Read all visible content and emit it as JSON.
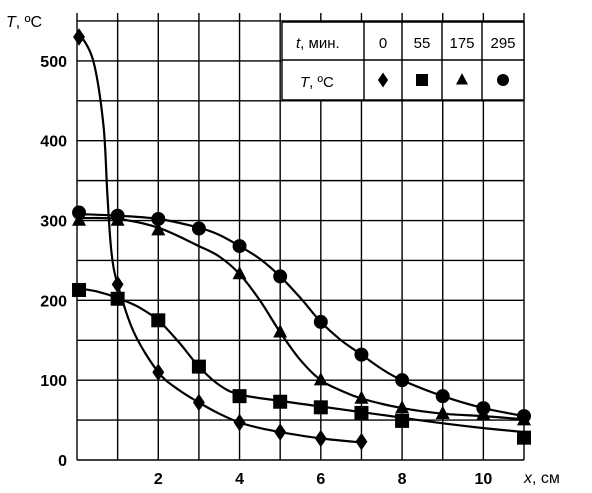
{
  "chart_data": {
    "type": "line",
    "xlabel": {
      "var": "x",
      "unit": ", см"
    },
    "ylabel": {
      "var": "T",
      "unit": ", ºС"
    },
    "xlim": [
      0,
      11
    ],
    "ylim": [
      0,
      560
    ],
    "x_ticks": [
      2,
      4,
      6,
      8,
      10
    ],
    "y_ticks": [
      0,
      100,
      200,
      300,
      400,
      500
    ],
    "grid": true,
    "legend": {
      "placement": "top-right table",
      "header_label": {
        "var": "t",
        "unit": ", мин."
      },
      "marker_row_label": {
        "var": "T",
        "unit": ", ºС"
      },
      "entries": [
        "0",
        "55",
        "175",
        "295"
      ]
    },
    "series": [
      {
        "name": "0",
        "marker": "diamond",
        "points": [
          [
            0.05,
            530
          ],
          [
            1,
            220
          ],
          [
            2,
            110
          ],
          [
            3,
            72
          ],
          [
            4,
            47
          ],
          [
            5,
            35
          ],
          [
            6,
            27
          ],
          [
            7,
            23
          ]
        ],
        "curve": [
          [
            0.05,
            535
          ],
          [
            0.4,
            500
          ],
          [
            0.65,
            420
          ],
          [
            0.75,
            330
          ],
          [
            0.85,
            260
          ],
          [
            1,
            220
          ],
          [
            1.4,
            160
          ],
          [
            2,
            110
          ],
          [
            2.5,
            88
          ],
          [
            3,
            72
          ],
          [
            3.5,
            58
          ],
          [
            4,
            47
          ],
          [
            4.5,
            40
          ],
          [
            5,
            35
          ],
          [
            6,
            27
          ],
          [
            7,
            22
          ]
        ]
      },
      {
        "name": "55",
        "marker": "square",
        "points": [
          [
            0.05,
            213
          ],
          [
            1,
            202
          ],
          [
            2,
            175
          ],
          [
            3,
            117
          ],
          [
            4,
            80
          ],
          [
            5,
            73
          ],
          [
            6,
            66
          ],
          [
            7,
            59
          ],
          [
            8,
            49
          ],
          [
            11,
            28
          ]
        ],
        "curve": [
          [
            0.05,
            215
          ],
          [
            0.5,
            211
          ],
          [
            1,
            203
          ],
          [
            1.5,
            192
          ],
          [
            2,
            175
          ],
          [
            2.5,
            148
          ],
          [
            3,
            117
          ],
          [
            3.5,
            94
          ],
          [
            4,
            82
          ],
          [
            5,
            74
          ],
          [
            6,
            67
          ],
          [
            7,
            60
          ],
          [
            8,
            53
          ],
          [
            9,
            46
          ],
          [
            10,
            40
          ],
          [
            11,
            35
          ]
        ]
      },
      {
        "name": "175",
        "marker": "triangle",
        "points": [
          [
            0.05,
            300
          ],
          [
            1,
            300
          ],
          [
            2,
            288
          ],
          [
            4,
            233
          ],
          [
            5,
            160
          ],
          [
            6,
            100
          ],
          [
            7,
            77
          ],
          [
            8,
            65
          ],
          [
            9,
            58
          ],
          [
            10,
            57
          ],
          [
            11,
            50
          ]
        ],
        "curve": [
          [
            0.05,
            303
          ],
          [
            1,
            302
          ],
          [
            2,
            291
          ],
          [
            3,
            268
          ],
          [
            3.5,
            255
          ],
          [
            4,
            233
          ],
          [
            4.5,
            200
          ],
          [
            5,
            160
          ],
          [
            5.5,
            125
          ],
          [
            6,
            100
          ],
          [
            6.5,
            87
          ],
          [
            7,
            77
          ],
          [
            8,
            65
          ],
          [
            9,
            58
          ],
          [
            10,
            55
          ],
          [
            11,
            51
          ]
        ]
      },
      {
        "name": "295",
        "marker": "circle",
        "points": [
          [
            0.05,
            310
          ],
          [
            1,
            306
          ],
          [
            2,
            302
          ],
          [
            3,
            290
          ],
          [
            4,
            268
          ],
          [
            5,
            230
          ],
          [
            6,
            173
          ],
          [
            7,
            132
          ],
          [
            8,
            100
          ],
          [
            9,
            80
          ],
          [
            10,
            65
          ],
          [
            11,
            55
          ]
        ],
        "curve": [
          [
            0.05,
            308
          ],
          [
            1,
            306
          ],
          [
            2,
            302
          ],
          [
            3,
            291
          ],
          [
            3.5,
            282
          ],
          [
            4,
            268
          ],
          [
            4.5,
            252
          ],
          [
            5,
            230
          ],
          [
            5.5,
            203
          ],
          [
            6,
            173
          ],
          [
            6.5,
            150
          ],
          [
            7,
            132
          ],
          [
            7.5,
            114
          ],
          [
            8,
            100
          ],
          [
            9,
            80
          ],
          [
            10,
            65
          ],
          [
            11,
            55
          ]
        ]
      }
    ]
  }
}
